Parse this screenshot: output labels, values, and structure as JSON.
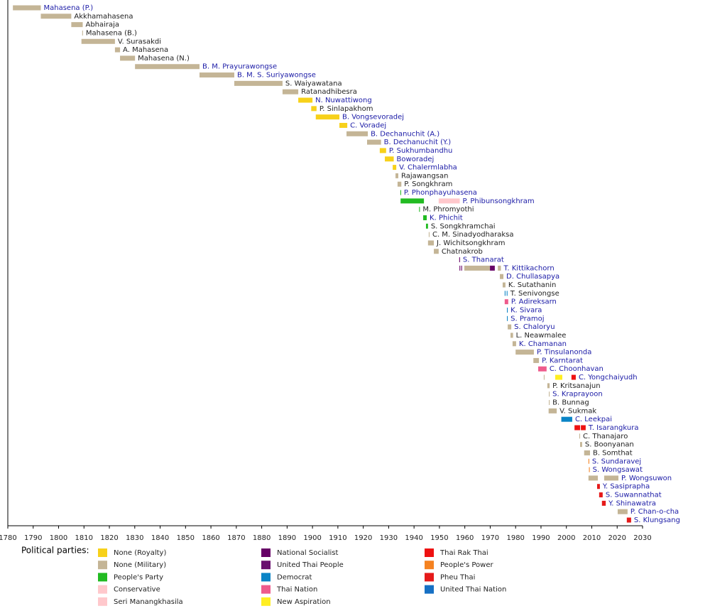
{
  "chart_data": {
    "type": "timeline",
    "xlim": [
      1780,
      2030
    ],
    "xticks": [
      1780,
      1790,
      1800,
      1810,
      1820,
      1830,
      1840,
      1850,
      1860,
      1870,
      1880,
      1890,
      1900,
      1910,
      1920,
      1930,
      1940,
      1950,
      1960,
      1970,
      1980,
      1990,
      2000,
      2010,
      2020,
      2030
    ],
    "rows": [
      {
        "name": "Mahasena (P.)",
        "label_color": "#1a1aa6",
        "segments": [
          {
            "start": 1782,
            "end": 1793,
            "color": "#c4b596"
          }
        ]
      },
      {
        "name": "Akkhamahasena",
        "label_color": "#222222",
        "segments": [
          {
            "start": 1793,
            "end": 1805,
            "color": "#c4b596"
          }
        ]
      },
      {
        "name": "Abhairaja",
        "label_color": "#222222",
        "segments": [
          {
            "start": 1805,
            "end": 1809.5,
            "color": "#c4b596"
          }
        ]
      },
      {
        "name": "Mahasena (B.)",
        "label_color": "#222222",
        "segments": [
          {
            "start": 1809.3,
            "end": 1809.6,
            "color": "#c4b596"
          }
        ]
      },
      {
        "name": "V. Surasakdi",
        "label_color": "#222222",
        "segments": [
          {
            "start": 1809,
            "end": 1822.2,
            "color": "#c4b596"
          }
        ]
      },
      {
        "name": "A. Mahasena",
        "label_color": "#222222",
        "segments": [
          {
            "start": 1822.2,
            "end": 1824.2,
            "color": "#c4b596"
          }
        ]
      },
      {
        "name": "Mahasena (N.)",
        "label_color": "#222222",
        "segments": [
          {
            "start": 1824.2,
            "end": 1830.1,
            "color": "#c4b596"
          }
        ]
      },
      {
        "name": "B. M. Prayurawongse",
        "label_color": "#1a1aa6",
        "segments": [
          {
            "start": 1830.1,
            "end": 1855.5,
            "color": "#c4b596"
          }
        ]
      },
      {
        "name": "B. M. S. Suriyawongse",
        "label_color": "#1a1aa6",
        "segments": [
          {
            "start": 1855.5,
            "end": 1869.2,
            "color": "#c4b596"
          }
        ]
      },
      {
        "name": "S. Waiyawatana",
        "label_color": "#222222",
        "segments": [
          {
            "start": 1869.2,
            "end": 1888.2,
            "color": "#c4b596"
          }
        ]
      },
      {
        "name": "Ratanadhibesra",
        "label_color": "#222222",
        "segments": [
          {
            "start": 1888.2,
            "end": 1894.4,
            "color": "#c4b596"
          }
        ]
      },
      {
        "name": "N. Nuwattiwong",
        "label_color": "#1a1aa6",
        "segments": [
          {
            "start": 1894.4,
            "end": 1900,
            "color": "#f7d11a"
          }
        ]
      },
      {
        "name": "P. Sinlapakhom",
        "label_color": "#222222",
        "segments": [
          {
            "start": 1899.5,
            "end": 1901.6,
            "color": "#f7d11a"
          }
        ]
      },
      {
        "name": "B. Vongsevoradej",
        "label_color": "#1a1aa6",
        "segments": [
          {
            "start": 1901.3,
            "end": 1910.6,
            "color": "#f7d11a"
          }
        ]
      },
      {
        "name": "C. Voradej",
        "label_color": "#1a1aa6",
        "segments": [
          {
            "start": 1910.6,
            "end": 1913.7,
            "color": "#f7d11a"
          }
        ]
      },
      {
        "name": "B. Dechanuchit (A.)",
        "label_color": "#1a1aa6",
        "segments": [
          {
            "start": 1913.4,
            "end": 1921.8,
            "color": "#c4b596"
          }
        ]
      },
      {
        "name": "B. Dechanuchit (Y.)",
        "label_color": "#1a1aa6",
        "segments": [
          {
            "start": 1921.5,
            "end": 1927,
            "color": "#c4b596"
          }
        ]
      },
      {
        "name": "P. Sukhumbandhu",
        "label_color": "#1a1aa6",
        "segments": [
          {
            "start": 1926.5,
            "end": 1929,
            "color": "#f7d11a"
          }
        ]
      },
      {
        "name": "Boworadej",
        "label_color": "#1a1aa6",
        "segments": [
          {
            "start": 1928.5,
            "end": 1932,
            "color": "#f7d11a"
          }
        ]
      },
      {
        "name": "V. Chalermlabha",
        "label_color": "#1a1aa6",
        "segments": [
          {
            "start": 1931.6,
            "end": 1933,
            "color": "#f7d11a"
          }
        ]
      },
      {
        "name": "Rajawangsan",
        "label_color": "#222222",
        "segments": [
          {
            "start": 1932.7,
            "end": 1933.8,
            "color": "#c4b596"
          }
        ]
      },
      {
        "name": "P. Songkhram",
        "label_color": "#222222",
        "segments": [
          {
            "start": 1933.5,
            "end": 1935,
            "color": "#c4b596"
          }
        ]
      },
      {
        "name": "P. Phonphayuhasena",
        "label_color": "#1a1aa6",
        "segments": [
          {
            "start": 1934.6,
            "end": 1934.9,
            "color": "#22bb22"
          }
        ]
      },
      {
        "name": "P. Phibunsongkhram",
        "label_color": "#1a1aa6",
        "segments": [
          {
            "start": 1934.7,
            "end": 1943.9,
            "color": "#22bb22"
          },
          {
            "start": 1949.7,
            "end": 1958,
            "color": "#ffc8cc"
          }
        ]
      },
      {
        "name": "M. Phromyothi",
        "label_color": "#222222",
        "segments": [
          {
            "start": 1942,
            "end": 1942.3,
            "color": "#22bb22"
          }
        ]
      },
      {
        "name": "K. Phichit",
        "label_color": "#1a1aa6",
        "segments": [
          {
            "start": 1943.6,
            "end": 1945,
            "color": "#22bb22"
          }
        ]
      },
      {
        "name": "S. Songkhramchai",
        "label_color": "#222222",
        "segments": [
          {
            "start": 1944.7,
            "end": 1945.5,
            "color": "#22bb22"
          }
        ]
      },
      {
        "name": "C. M. Sinadyodharaksa",
        "label_color": "#222222",
        "segments": [
          {
            "start": 1945.8,
            "end": 1946.1,
            "color": "#c4b596"
          }
        ]
      },
      {
        "name": "J. Wichitsongkhram",
        "label_color": "#222222",
        "segments": [
          {
            "start": 1945.5,
            "end": 1947.8,
            "color": "#c4b596"
          }
        ]
      },
      {
        "name": "Chatnakrob",
        "label_color": "#222222",
        "segments": [
          {
            "start": 1947.8,
            "end": 1949.7,
            "color": "#c4b596"
          }
        ]
      },
      {
        "name": "S. Thanarat",
        "label_color": "#1a1aa6",
        "segments": [
          {
            "start": 1957.8,
            "end": 1958.1,
            "color": "#660066"
          }
        ]
      },
      {
        "name": "T. Kittikachorn",
        "label_color": "#1a1aa6",
        "segments": [
          {
            "start": 1957.9,
            "end": 1958.2,
            "color": "#660066"
          },
          {
            "start": 1958.6,
            "end": 1958.9,
            "color": "#660066"
          },
          {
            "start": 1959.8,
            "end": 1969.9,
            "color": "#c4b596"
          },
          {
            "start": 1969.9,
            "end": 1971.8,
            "color": "#660066"
          },
          {
            "start": 1973,
            "end": 1974.2,
            "color": "#c4b596"
          }
        ]
      },
      {
        "name": "D. Chullasapya",
        "label_color": "#1a1aa6",
        "segments": [
          {
            "start": 1973.8,
            "end": 1975.2,
            "color": "#c4b596"
          }
        ]
      },
      {
        "name": "K. Sutathanin",
        "label_color": "#222222",
        "segments": [
          {
            "start": 1974.9,
            "end": 1976,
            "color": "#c4b596"
          }
        ]
      },
      {
        "name": "T. Senivongse",
        "label_color": "#222222",
        "segments": [
          {
            "start": 1975.7,
            "end": 1976,
            "color": "#0a84c6"
          },
          {
            "start": 1976.5,
            "end": 1976.8,
            "color": "#0a84c6"
          }
        ]
      },
      {
        "name": "P. Adireksarn",
        "label_color": "#1a1aa6",
        "segments": [
          {
            "start": 1975.7,
            "end": 1977.1,
            "color": "#ee5b8c"
          }
        ]
      },
      {
        "name": "K. Sivara",
        "label_color": "#1a1aa6",
        "segments": [
          {
            "start": 1976.6,
            "end": 1976.9,
            "color": "#0a84c6"
          }
        ]
      },
      {
        "name": "S. Pramoj",
        "label_color": "#1a1aa6",
        "segments": [
          {
            "start": 1976.6,
            "end": 1976.9,
            "color": "#0a84c6"
          }
        ]
      },
      {
        "name": "S. Chaloryu",
        "label_color": "#1a1aa6",
        "segments": [
          {
            "start": 1976.9,
            "end": 1978.3,
            "color": "#c4b596"
          }
        ]
      },
      {
        "name": "L. Neawmalee",
        "label_color": "#222222",
        "segments": [
          {
            "start": 1978,
            "end": 1979,
            "color": "#c4b596"
          }
        ]
      },
      {
        "name": "K. Chamanan",
        "label_color": "#1a1aa6",
        "segments": [
          {
            "start": 1978.8,
            "end": 1980.2,
            "color": "#c4b596"
          }
        ]
      },
      {
        "name": "P. Tinsulanonda",
        "label_color": "#1a1aa6",
        "segments": [
          {
            "start": 1980,
            "end": 1987.2,
            "color": "#c4b596"
          }
        ]
      },
      {
        "name": "P. Karntarat",
        "label_color": "#1a1aa6",
        "segments": [
          {
            "start": 1987,
            "end": 1989.2,
            "color": "#c4b596"
          }
        ]
      },
      {
        "name": "C. Choonhavan",
        "label_color": "#1a1aa6",
        "segments": [
          {
            "start": 1988.9,
            "end": 1992.2,
            "color": "#ee5b8c"
          }
        ]
      },
      {
        "name": "C. Yongchaiyudh",
        "label_color": "#1a1aa6",
        "segments": [
          {
            "start": 1991.1,
            "end": 1991.4,
            "color": "#c4b596"
          },
          {
            "start": 1995.6,
            "end": 1998.4,
            "color": "#ffee22"
          },
          {
            "start": 2002,
            "end": 2003.7,
            "color": "#ee1111"
          }
        ]
      },
      {
        "name": "P. Kritsanajun",
        "label_color": "#222222",
        "segments": [
          {
            "start": 1992.5,
            "end": 1993.4,
            "color": "#c4b596"
          }
        ]
      },
      {
        "name": "S. Kraprayoon",
        "label_color": "#1a1aa6",
        "segments": [
          {
            "start": 1993.1,
            "end": 1993.4,
            "color": "#c4b596"
          }
        ]
      },
      {
        "name": "B. Bunnag",
        "label_color": "#222222",
        "segments": [
          {
            "start": 1993.1,
            "end": 1993.4,
            "color": "#c4b596"
          }
        ]
      },
      {
        "name": "V. Sukmak",
        "label_color": "#222222",
        "segments": [
          {
            "start": 1993,
            "end": 1996.2,
            "color": "#c4b596"
          }
        ]
      },
      {
        "name": "C. Leekpai",
        "label_color": "#1a1aa6",
        "segments": [
          {
            "start": 1998,
            "end": 2002.3,
            "color": "#0a84c6"
          }
        ]
      },
      {
        "name": "T. Isarangkura",
        "label_color": "#1a1aa6",
        "segments": [
          {
            "start": 2003.2,
            "end": 2005.4,
            "color": "#ee1111"
          },
          {
            "start": 2005.7,
            "end": 2007.6,
            "color": "#ee1111"
          }
        ]
      },
      {
        "name": "C. Thanajaro",
        "label_color": "#222222",
        "segments": [
          {
            "start": 2005.1,
            "end": 2005.4,
            "color": "#c4b596"
          }
        ]
      },
      {
        "name": "S. Boonyanan",
        "label_color": "#222222",
        "segments": [
          {
            "start": 2005.4,
            "end": 2006.2,
            "color": "#c4b596"
          }
        ]
      },
      {
        "name": "B. Somthat",
        "label_color": "#222222",
        "segments": [
          {
            "start": 2007,
            "end": 2009.3,
            "color": "#c4b596"
          }
        ]
      },
      {
        "name": "S. Sundaravej",
        "label_color": "#1a1aa6",
        "segments": [
          {
            "start": 2008.7,
            "end": 2009,
            "color": "#f58220"
          }
        ]
      },
      {
        "name": "S. Wongsawat",
        "label_color": "#1a1aa6",
        "segments": [
          {
            "start": 2008.9,
            "end": 2009.2,
            "color": "#f58220"
          }
        ]
      },
      {
        "name": "P. Wongsuwon",
        "label_color": "#1a1aa6",
        "segments": [
          {
            "start": 2008.7,
            "end": 2012.4,
            "color": "#c4b596"
          },
          {
            "start": 2014.9,
            "end": 2020.5,
            "color": "#c4b596"
          }
        ]
      },
      {
        "name": "Y. Sasiprapha",
        "label_color": "#1a1aa6",
        "segments": [
          {
            "start": 2012.1,
            "end": 2013.2,
            "color": "#e51a1a"
          }
        ]
      },
      {
        "name": "S. Suwannathat",
        "label_color": "#1a1aa6",
        "segments": [
          {
            "start": 2012.9,
            "end": 2014.3,
            "color": "#e51a1a"
          }
        ]
      },
      {
        "name": "Y. Shinawatra",
        "label_color": "#1a1aa6",
        "segments": [
          {
            "start": 2014,
            "end": 2015.5,
            "color": "#e51a1a"
          }
        ]
      },
      {
        "name": "P. Chan-o-cha",
        "label_color": "#1a1aa6",
        "segments": [
          {
            "start": 2020.2,
            "end": 2024.1,
            "color": "#c4b596"
          }
        ]
      },
      {
        "name": "S. Klungsang",
        "label_color": "#1a1aa6",
        "segments": [
          {
            "start": 2023.8,
            "end": 2025.5,
            "color": "#e51a1a"
          }
        ]
      }
    ],
    "legend": {
      "title": "Political parties:",
      "items": [
        {
          "name": "None (Royalty)",
          "color": "#f7d11a"
        },
        {
          "name": "None (Military)",
          "color": "#c4b596"
        },
        {
          "name": "People's Party",
          "color": "#22bb22"
        },
        {
          "name": "Conservative",
          "color": "#ffc8cc"
        },
        {
          "name": "Seri Manangkhasila",
          "color": "#ffc8cc"
        },
        {
          "name": "National Socialist",
          "color": "#660066"
        },
        {
          "name": "United Thai People",
          "color": "#6a0f6e"
        },
        {
          "name": "Democrat",
          "color": "#0a84c6"
        },
        {
          "name": "Thai Nation",
          "color": "#ee5b8c"
        },
        {
          "name": "New Aspiration",
          "color": "#ffee22"
        },
        {
          "name": "Thai Rak Thai",
          "color": "#ee1111"
        },
        {
          "name": "People's Power",
          "color": "#f58220"
        },
        {
          "name": "Pheu Thai",
          "color": "#e51a1a"
        },
        {
          "name": "United Thai Nation",
          "color": "#1670c4"
        }
      ]
    }
  }
}
